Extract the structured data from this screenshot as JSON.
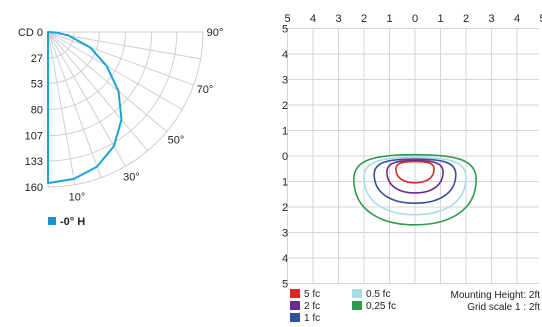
{
  "chart_data": [
    {
      "type": "polar",
      "description_units": "candela",
      "radial_label": "CD",
      "radial_ticks": [
        0,
        27,
        53,
        80,
        107,
        133,
        160
      ],
      "angle_ticks": [
        {
          "deg": 10,
          "label": "10°"
        },
        {
          "deg": 30,
          "label": "30°"
        },
        {
          "deg": 50,
          "label": "50°"
        },
        {
          "deg": 70,
          "label": "70°"
        },
        {
          "deg": 90,
          "label": "90°"
        }
      ],
      "rmax": 160,
      "grid": true,
      "series": [
        {
          "name": "-0° H",
          "color": "#1aa3d4",
          "angles": [
            0,
            10,
            20,
            30,
            40,
            50,
            60,
            70,
            80,
            85,
            90
          ],
          "values": [
            156,
            154,
            148,
            136,
            118,
            95,
            70,
            46,
            22,
            10,
            0
          ]
        }
      ],
      "legend": [
        {
          "label": "-0° H",
          "color": "#1a8fd0"
        }
      ]
    },
    {
      "type": "isofootcandle",
      "x_ticks": [
        5,
        4,
        3,
        2,
        1,
        0,
        1,
        2,
        3,
        4,
        5
      ],
      "y_ticks": [
        5,
        4,
        3,
        2,
        1,
        0,
        1,
        2,
        3,
        4,
        5
      ],
      "grid": true,
      "contours": [
        {
          "label": "0,25 fc",
          "color": "#2e9a4e",
          "x_halfwidth": 2.4,
          "y_top": -0.05,
          "y_bottom": 2.7
        },
        {
          "label": "0.5 fc",
          "color": "#a8dde2",
          "x_halfwidth": 2.0,
          "y_top": 0.05,
          "y_bottom": 2.3
        },
        {
          "label": "1 fc",
          "color": "#34509a",
          "x_halfwidth": 1.6,
          "y_top": 0.12,
          "y_bottom": 1.85
        },
        {
          "label": "2 fc",
          "color": "#6b2c8c",
          "x_halfwidth": 1.1,
          "y_top": 0.18,
          "y_bottom": 1.45
        },
        {
          "label": "5 fc",
          "color": "#d62a2a",
          "x_halfwidth": 0.75,
          "y_top": 0.22,
          "y_bottom": 1.05
        }
      ],
      "legend": [
        {
          "label": "5 fc",
          "color": "#d62a2a"
        },
        {
          "label": "0.5 fc",
          "color": "#a8dde2"
        },
        {
          "label": "2 fc",
          "color": "#6b2c8c"
        },
        {
          "label": "0,25 fc",
          "color": "#2e9a4e"
        },
        {
          "label": "1 fc",
          "color": "#34509a"
        }
      ],
      "mounting_height": "Mounting Height: 2ft",
      "grid_scale": "Grid scale  1 : 2ft"
    }
  ]
}
